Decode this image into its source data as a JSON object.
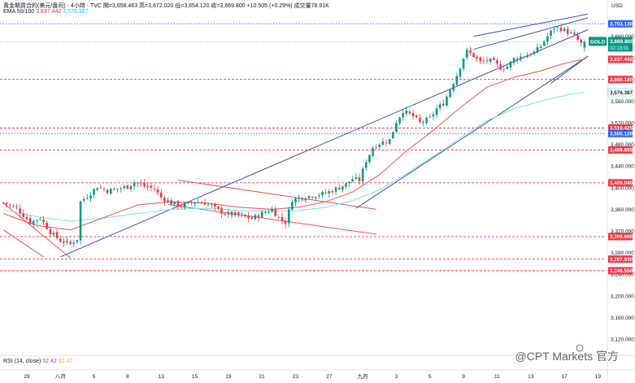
{
  "header": {
    "line1": "黃金期貨合約(美元/盎司) · 4小時 · TVC  開=3,658.463  高=3,672.020  低=3,654.120  收=3,669.800  +10.505 (+0.29%)  成交量78.91K",
    "ema_label": "EMA 50/100",
    "ema50_value": "3,637.442",
    "ema100_value": "3,576.387"
  },
  "rsi_header": {
    "label": "RSI (14, close)",
    "value1": "52.42",
    "value2": "62.42"
  },
  "axis_unit": "USD",
  "watermark": "@CPT Markets 官方",
  "colors": {
    "up": "#089981",
    "down": "#f23645",
    "ema50": "#f0625f",
    "ema100": "#7ee7f0",
    "trendline": "#3f51b5",
    "price_tag": "#089981"
  },
  "chart_data": {
    "type": "candlestick",
    "symbol": "GOLD",
    "timeframe": "4小時",
    "y_range": [
      3090,
      3720
    ],
    "y_ticks": [
      3120,
      3160,
      3200,
      3240,
      3280,
      3320,
      3360,
      3400,
      3440,
      3480,
      3520,
      3560,
      3600,
      3640,
      3680
    ],
    "x_ticks": [
      {
        "label": "29",
        "index": 7
      },
      {
        "label": "八月",
        "index": 17
      },
      {
        "label": "5",
        "index": 27
      },
      {
        "label": "8",
        "index": 37
      },
      {
        "label": "13",
        "index": 47
      },
      {
        "label": "15",
        "index": 57
      },
      {
        "label": "19",
        "index": 67
      },
      {
        "label": "21",
        "index": 77
      },
      {
        "label": "23",
        "index": 87
      },
      {
        "label": "27",
        "index": 97
      },
      {
        "label": "九月",
        "index": 107
      },
      {
        "label": "3",
        "index": 117
      },
      {
        "label": "5",
        "index": 127
      },
      {
        "label": "9",
        "index": 137
      },
      {
        "label": "11",
        "index": 147
      },
      {
        "label": "13",
        "index": 157
      },
      {
        "label": "17",
        "index": 167
      },
      {
        "label": "19",
        "index": 177
      }
    ],
    "close_path": [
      [
        0,
        3372
      ],
      [
        4,
        3362
      ],
      [
        8,
        3336
      ],
      [
        11,
        3344
      ],
      [
        14,
        3318
      ],
      [
        17,
        3302
      ],
      [
        20,
        3296
      ],
      [
        22,
        3305
      ],
      [
        23,
        3374
      ],
      [
        26,
        3390
      ],
      [
        28,
        3402
      ],
      [
        31,
        3394
      ],
      [
        34,
        3398
      ],
      [
        37,
        3402
      ],
      [
        39,
        3410
      ],
      [
        42,
        3403
      ],
      [
        45,
        3398
      ],
      [
        47,
        3382
      ],
      [
        50,
        3372
      ],
      [
        53,
        3366
      ],
      [
        57,
        3374
      ],
      [
        60,
        3372
      ],
      [
        63,
        3362
      ],
      [
        66,
        3352
      ],
      [
        69,
        3350
      ],
      [
        72,
        3346
      ],
      [
        74,
        3343
      ],
      [
        77,
        3352
      ],
      [
        80,
        3360
      ],
      [
        82,
        3344
      ],
      [
        84,
        3336
      ],
      [
        86,
        3378
      ],
      [
        89,
        3382
      ],
      [
        93,
        3386
      ],
      [
        96,
        3390
      ],
      [
        99,
        3398
      ],
      [
        102,
        3406
      ],
      [
        104,
        3416
      ],
      [
        106,
        3414
      ],
      [
        108,
        3450
      ],
      [
        110,
        3474
      ],
      [
        112,
        3482
      ],
      [
        115,
        3488
      ],
      [
        117,
        3522
      ],
      [
        119,
        3542
      ],
      [
        122,
        3532
      ],
      [
        124,
        3520
      ],
      [
        127,
        3528
      ],
      [
        129,
        3546
      ],
      [
        131,
        3556
      ],
      [
        133,
        3582
      ],
      [
        135,
        3608
      ],
      [
        137,
        3640
      ],
      [
        138,
        3652
      ],
      [
        140,
        3644
      ],
      [
        142,
        3632
      ],
      [
        144,
        3636
      ],
      [
        146,
        3632
      ],
      [
        148,
        3622
      ],
      [
        150,
        3624
      ],
      [
        152,
        3638
      ],
      [
        154,
        3642
      ],
      [
        156,
        3646
      ],
      [
        158,
        3650
      ],
      [
        160,
        3662
      ],
      [
        162,
        3680
      ],
      [
        164,
        3696
      ],
      [
        166,
        3694
      ],
      [
        168,
        3688
      ],
      [
        170,
        3680
      ],
      [
        172,
        3666
      ],
      [
        173,
        3669.8
      ]
    ],
    "candle_count": 174,
    "ema50": [
      [
        0,
        3352
      ],
      [
        10,
        3330
      ],
      [
        20,
        3322
      ],
      [
        30,
        3345
      ],
      [
        40,
        3368
      ],
      [
        50,
        3374
      ],
      [
        60,
        3372
      ],
      [
        70,
        3364
      ],
      [
        80,
        3360
      ],
      [
        88,
        3364
      ],
      [
        96,
        3374
      ],
      [
        104,
        3392
      ],
      [
        112,
        3424
      ],
      [
        120,
        3468
      ],
      [
        128,
        3506
      ],
      [
        136,
        3548
      ],
      [
        144,
        3586
      ],
      [
        152,
        3604
      ],
      [
        160,
        3616
      ],
      [
        166,
        3628
      ],
      [
        170,
        3634
      ],
      [
        173,
        3637.442
      ]
    ],
    "ema100": [
      [
        0,
        3360
      ],
      [
        10,
        3346
      ],
      [
        20,
        3338
      ],
      [
        30,
        3344
      ],
      [
        40,
        3352
      ],
      [
        50,
        3360
      ],
      [
        60,
        3362
      ],
      [
        70,
        3358
      ],
      [
        80,
        3356
      ],
      [
        88,
        3358
      ],
      [
        96,
        3364
      ],
      [
        104,
        3376
      ],
      [
        112,
        3396
      ],
      [
        120,
        3426
      ],
      [
        128,
        3458
      ],
      [
        136,
        3492
      ],
      [
        144,
        3524
      ],
      [
        152,
        3546
      ],
      [
        160,
        3560
      ],
      [
        166,
        3569
      ],
      [
        170,
        3574
      ],
      [
        173,
        3576.387
      ]
    ],
    "horizontal_levels": [
      {
        "value": 3703.13,
        "label": "3,703.130",
        "color": "#2962ff",
        "style": "dotted"
      },
      {
        "value": 3600.18,
        "label": "3,600.180",
        "color": "#f23645",
        "style": "dashed"
      },
      {
        "value": 3510.425,
        "label": "3,510.425",
        "color": "#f23645",
        "style": "dashed"
      },
      {
        "value": 3500.12,
        "label": "3,500.120",
        "color": "#2962ff",
        "style": "dotted"
      },
      {
        "value": 3469.805,
        "label": "3,469.805",
        "color": "#f23645",
        "style": "dashed"
      },
      {
        "value": 3409.04,
        "label": "3,409.040",
        "color": "#f23645",
        "style": "dashed"
      },
      {
        "value": 3309.6,
        "label": "3,309.600",
        "color": "#f23645",
        "style": "dashed"
      },
      {
        "value": 3267.93,
        "label": "3,267.930",
        "color": "#f23645",
        "style": "dashed"
      },
      {
        "value": 3246.55,
        "label": "3,246.550",
        "color": "#f23645",
        "style": "dashed"
      }
    ],
    "price_label": {
      "symbol": "GOLD",
      "value": "3,669.800",
      "countdown": "02:13:01"
    },
    "ema50_tag": {
      "value": 3637.442,
      "label": "3,637.442"
    },
    "ema100_tag": {
      "value": 3576.387,
      "label": "3,576.387"
    },
    "trendlines_red": [
      [
        [
          0,
          3372
        ],
        [
          20,
          3270
        ]
      ],
      [
        [
          0,
          3322
        ],
        [
          12,
          3272
        ]
      ],
      [
        [
          52,
          3414
        ],
        [
          111,
          3360
        ]
      ],
      [
        [
          49,
          3369
        ],
        [
          111,
          3314
        ]
      ]
    ],
    "trendlines_blue": [
      [
        [
          17,
          3272
        ],
        [
          174,
          3692
        ]
      ],
      [
        [
          105,
          3362
        ],
        [
          174,
          3643
        ]
      ],
      [
        [
          163,
          3593
        ],
        [
          174,
          3643
        ]
      ],
      [
        [
          140,
          3680
        ],
        [
          174,
          3721
        ]
      ],
      [
        [
          140,
          3656
        ],
        [
          174,
          3714
        ]
      ]
    ]
  }
}
